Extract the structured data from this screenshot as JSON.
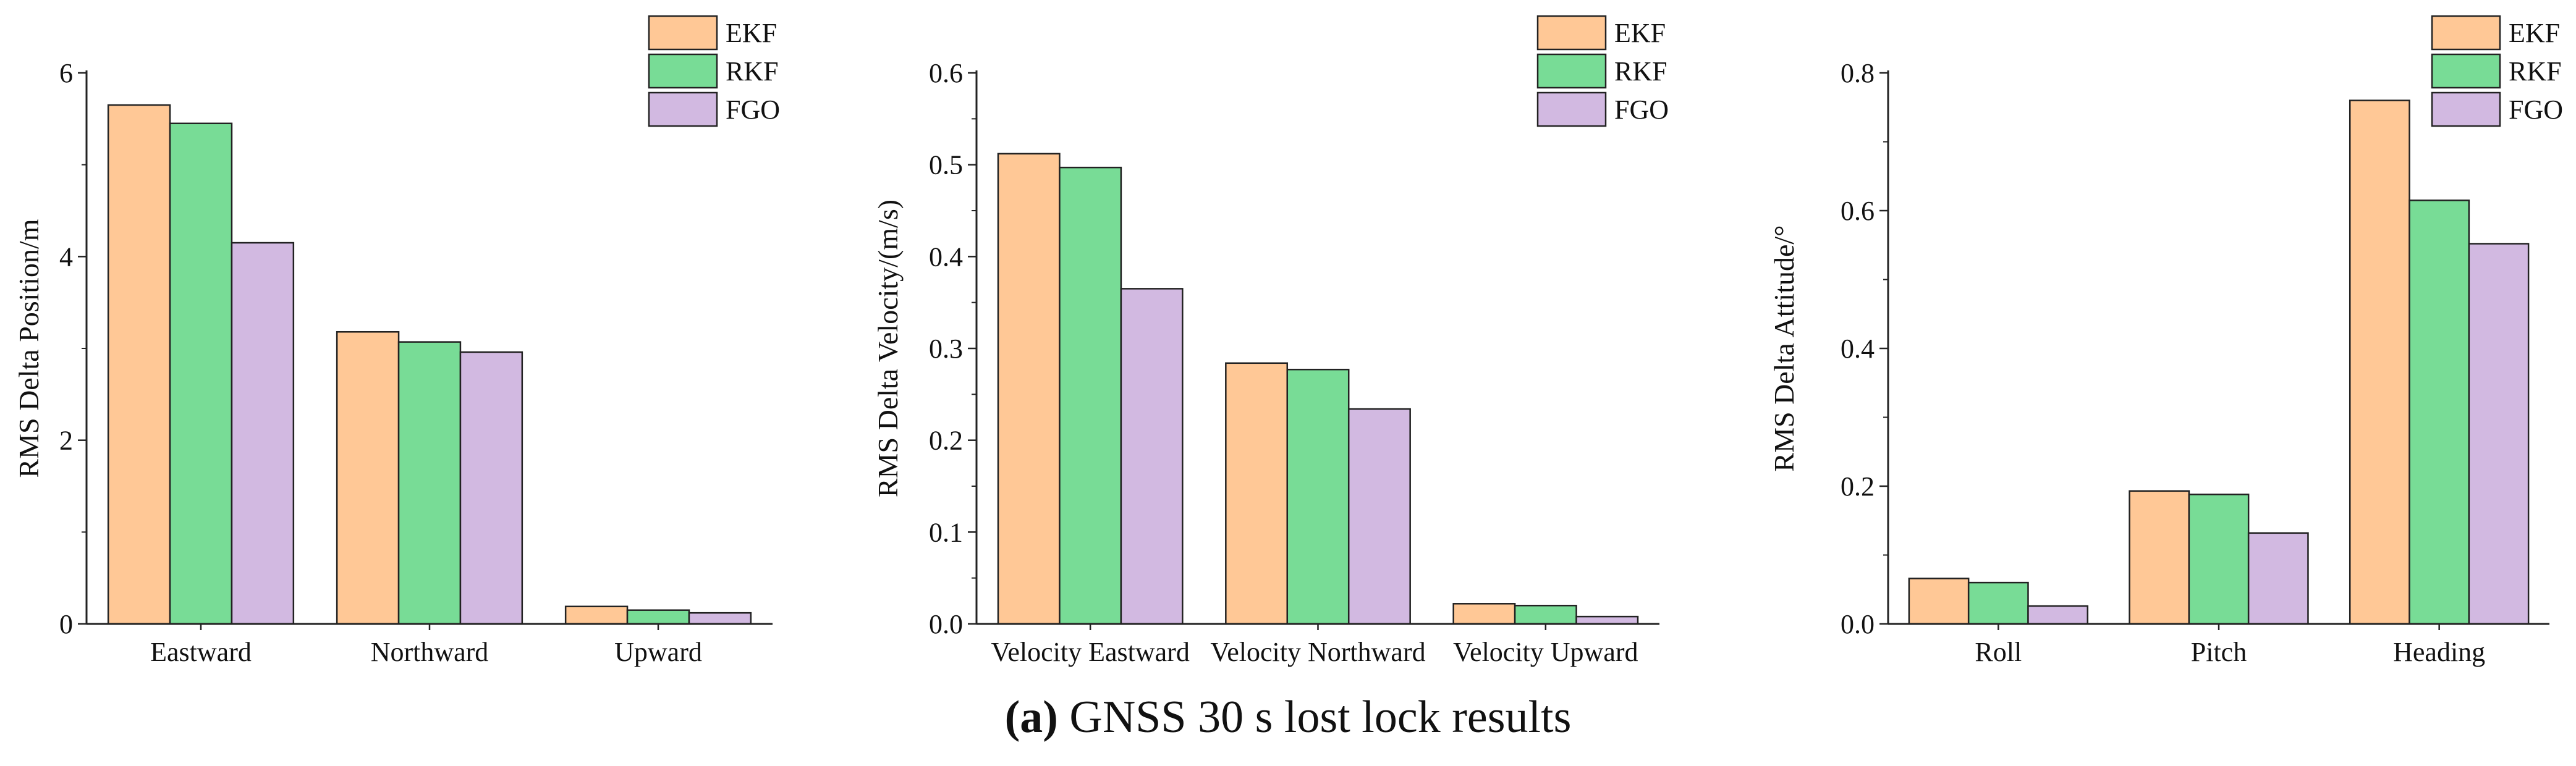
{
  "caption": {
    "label": "(a)",
    "text": " GNSS 30 s lost lock results"
  },
  "colors": {
    "EKF": "#ffc896",
    "RKF": "#78dc96",
    "FGO": "#d2b9e1",
    "edge": "#222222"
  },
  "chart_data": [
    {
      "type": "bar",
      "title": "",
      "xlabel": "",
      "ylabel": "RMS Delta Position/m",
      "ylim": [
        0,
        6
      ],
      "yticks": [
        0,
        2,
        4,
        6
      ],
      "ytick_labels": [
        "0",
        "2",
        "4",
        "6"
      ],
      "categories": [
        "Eastward",
        "Northward",
        "Upward"
      ],
      "series": [
        {
          "name": "EKF",
          "values": [
            5.65,
            3.18,
            0.19
          ]
        },
        {
          "name": "RKF",
          "values": [
            5.45,
            3.07,
            0.15
          ]
        },
        {
          "name": "FGO",
          "values": [
            4.15,
            2.96,
            0.12
          ]
        }
      ],
      "legend": "top-right",
      "grid": false
    },
    {
      "type": "bar",
      "title": "",
      "xlabel": "",
      "ylabel": "RMS Delta Velocity/(m/s)",
      "ylim": [
        0,
        0.6
      ],
      "yticks": [
        0,
        0.1,
        0.2,
        0.3,
        0.4,
        0.5,
        0.6
      ],
      "ytick_labels": [
        "0.0",
        "0.1",
        "0.2",
        "0.3",
        "0.4",
        "0.5",
        "0.6"
      ],
      "categories": [
        "Velocity Eastward",
        "Velocity Northward",
        "Velocity Upward"
      ],
      "series": [
        {
          "name": "EKF",
          "values": [
            0.512,
            0.284,
            0.022
          ]
        },
        {
          "name": "RKF",
          "values": [
            0.497,
            0.277,
            0.02
          ]
        },
        {
          "name": "FGO",
          "values": [
            0.365,
            0.234,
            0.008
          ]
        }
      ],
      "legend": "top-right",
      "grid": false
    },
    {
      "type": "bar",
      "title": "",
      "xlabel": "",
      "ylabel": "RMS Delta Attitude/°",
      "ylim": [
        0,
        0.8
      ],
      "yticks": [
        0,
        0.2,
        0.4,
        0.6,
        0.8
      ],
      "ytick_labels": [
        "0.0",
        "0.2",
        "0.4",
        "0.6",
        "0.8"
      ],
      "categories": [
        "Roll",
        "Pitch",
        "Heading"
      ],
      "series": [
        {
          "name": "EKF",
          "values": [
            0.066,
            0.193,
            0.76
          ]
        },
        {
          "name": "RKF",
          "values": [
            0.06,
            0.188,
            0.615
          ]
        },
        {
          "name": "FGO",
          "values": [
            0.026,
            0.132,
            0.552
          ]
        }
      ],
      "legend": "top-right",
      "grid": false
    }
  ]
}
